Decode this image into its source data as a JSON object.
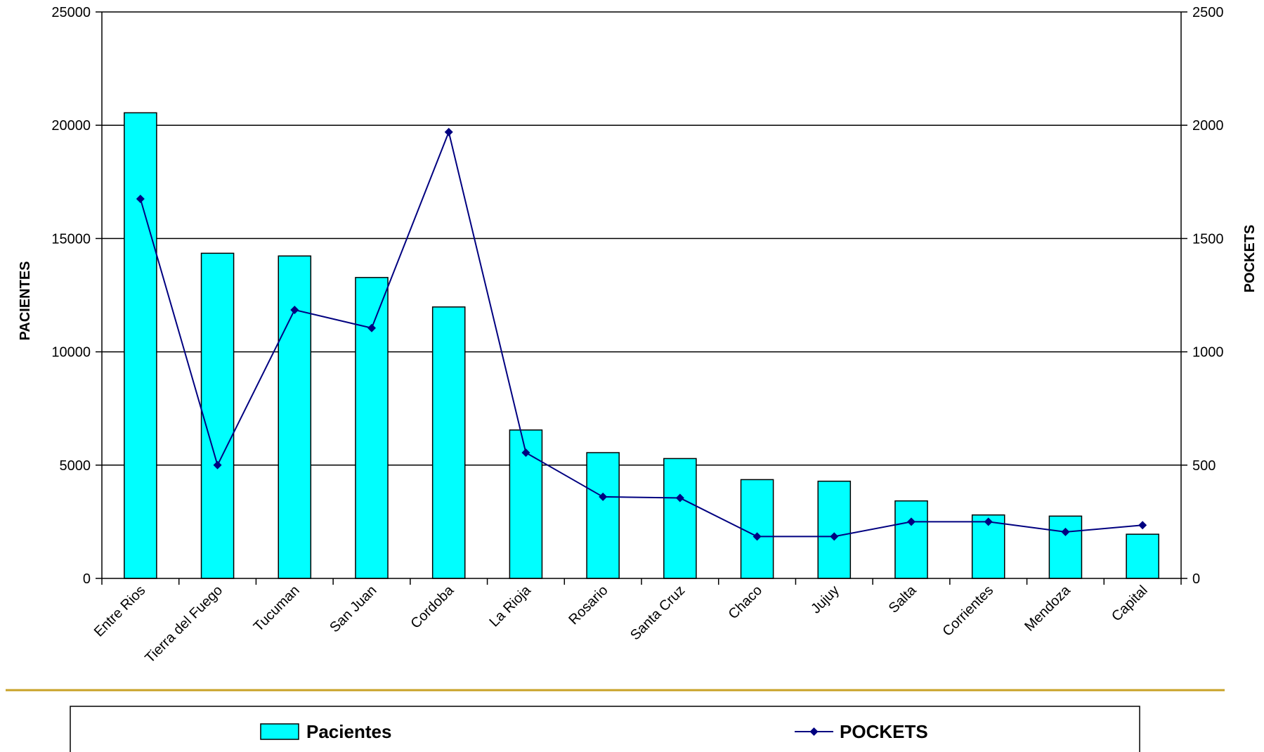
{
  "chart_data": {
    "type": "bar",
    "categories": [
      "Entre Rios",
      "Tierra del Fuego",
      "Tucuman",
      "San Juan",
      "Cordoba",
      "La Rioja",
      "Rosario",
      "Santa Cruz",
      "Chaco",
      "Jujuy",
      "Salta",
      "Corrientes",
      "Mendoza",
      "Capital"
    ],
    "series": [
      {
        "name": "Pacientes",
        "type": "bar",
        "axis": "left",
        "color": "#00FFFF",
        "values": [
          20550,
          14350,
          14230,
          13280,
          11980,
          6550,
          5550,
          5290,
          4360,
          4290,
          3420,
          2800,
          2750,
          1950
        ]
      },
      {
        "name": "POCKETS",
        "type": "line",
        "axis": "right",
        "color": "#000080",
        "marker": "diamond",
        "values": [
          1675,
          500,
          1185,
          1105,
          1970,
          555,
          360,
          355,
          185,
          185,
          250,
          250,
          205,
          235
        ]
      }
    ],
    "ylabel": "PACIENTES",
    "y2label": "POCKETS",
    "ylim": [
      0,
      25000
    ],
    "y2lim": [
      0,
      2500
    ],
    "yticks": [
      0,
      5000,
      10000,
      15000,
      20000,
      25000
    ],
    "y2ticks": [
      0,
      500,
      1000,
      1500,
      2000,
      2500
    ],
    "grid": true,
    "legend_position": "bottom"
  },
  "colors": {
    "divider": "#C9A227"
  }
}
